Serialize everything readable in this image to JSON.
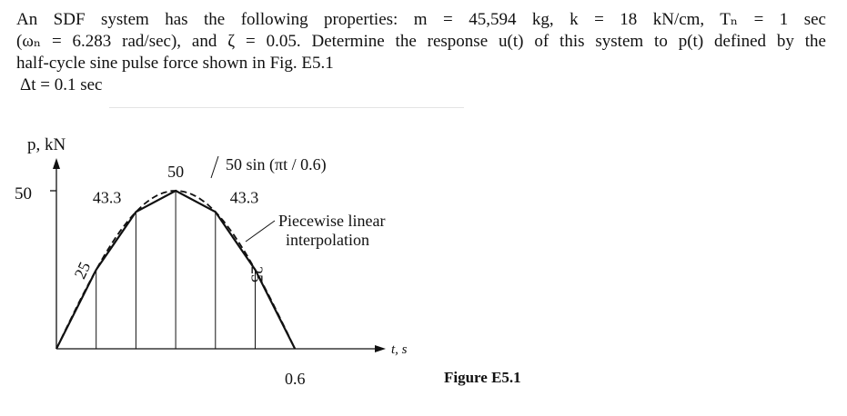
{
  "problem": {
    "line1": "An SDF system has the following properties: m = 45,594 kg, k = 18 kN/cm, Tₙ = 1 sec",
    "line2": "(ωₙ = 6.283 rad/sec), and ζ = 0.05. Determine the response u(t) of this system to p(t) defined by the",
    "line3": "half-cycle sine pulse force shown in Fig. E5.1",
    "line4": "Δt = 0.1 sec"
  },
  "figure": {
    "y_axis_label": "p, kN",
    "x_axis_label": "t, s",
    "y_tick_label": "50",
    "x_tick_label": "0.6",
    "caption": "Figure E5.1",
    "annotation_curve": "50 sin (πt / 0.6)",
    "annotation_interp_line1": "Piecewise linear",
    "annotation_interp_line2": "interpolation"
  },
  "chart_data": {
    "type": "line",
    "xlabel": "t, s",
    "ylabel": "p, kN",
    "xlim": [
      0,
      0.8
    ],
    "ylim": [
      0,
      50
    ],
    "series": [
      {
        "name": "50 sin (πt / 0.6)",
        "style": "dashed",
        "x": [
          0,
          0.05,
          0.1,
          0.15,
          0.2,
          0.25,
          0.3,
          0.35,
          0.4,
          0.45,
          0.5,
          0.55,
          0.6
        ],
        "y": [
          0,
          12.9,
          25,
          35.4,
          43.3,
          48.3,
          50,
          48.3,
          43.3,
          35.4,
          25,
          12.9,
          0
        ]
      },
      {
        "name": "Piecewise linear interpolation",
        "style": "solid",
        "x": [
          0,
          0.1,
          0.2,
          0.3,
          0.4,
          0.5,
          0.6
        ],
        "y": [
          0,
          25,
          43.3,
          50,
          43.3,
          25,
          0
        ],
        "point_labels": [
          "",
          "25",
          "43.3",
          "50",
          "43.3",
          "25",
          ""
        ]
      }
    ]
  }
}
